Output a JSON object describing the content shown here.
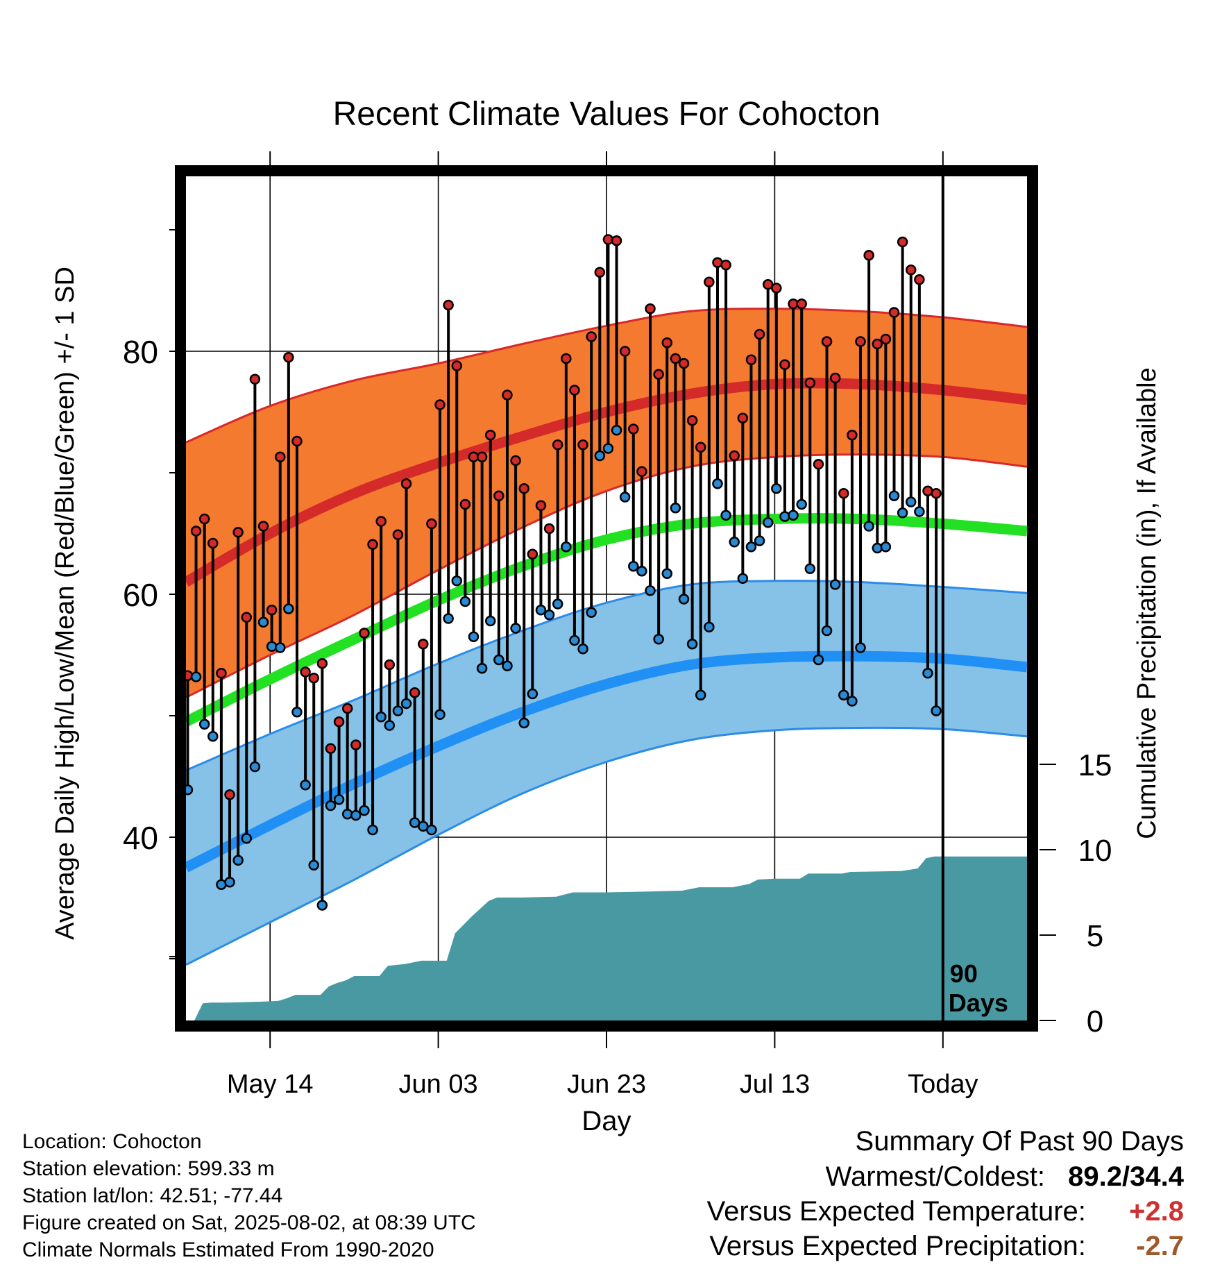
{
  "chart_data": {
    "type": "line",
    "title": "Recent Climate Values For Cohocton",
    "xlabel": "Day",
    "ylabel": "Average Daily High/Low/Mean (Red/Blue/Green) +/- 1 SD",
    "y2label": "Cumulative Precipitation (in), If Available",
    "x_range": [
      0,
      100
    ],
    "x_ticks": [
      {
        "day": 10,
        "label": "May 14"
      },
      {
        "day": 30,
        "label": "Jun 03"
      },
      {
        "day": 50,
        "label": "Jun 23"
      },
      {
        "day": 70,
        "label": "Jul 13"
      },
      {
        "day": 90,
        "label": "Today"
      }
    ],
    "ylim": [
      25,
      95
    ],
    "y_ticks": [
      40,
      60,
      80
    ],
    "y_minor_ticks": [
      30,
      50,
      70,
      90
    ],
    "y2lim": [
      0,
      15
    ],
    "y2_ticks": [
      0,
      5,
      10,
      15
    ],
    "grid": true,
    "today_marker": {
      "day": 90,
      "label_line1": "90",
      "label_line2": "Days"
    },
    "colors": {
      "high_band": "#f47a30",
      "high_band_edge": "#d9282a",
      "high_mean": "#d42a2a",
      "low_band": "#86c1e8",
      "low_band_edge": "#2a8ce8",
      "low_mean": "#2090f5",
      "mean_line": "#22e022",
      "precip": "#4899a2",
      "high_point": "#d42a2a",
      "low_point": "#2a8ad4"
    },
    "normal_high": [
      {
        "day": 0,
        "value": 61
      },
      {
        "day": 10,
        "value": 65
      },
      {
        "day": 20,
        "value": 68.3
      },
      {
        "day": 30,
        "value": 70.8
      },
      {
        "day": 40,
        "value": 73
      },
      {
        "day": 50,
        "value": 75
      },
      {
        "day": 60,
        "value": 76.5
      },
      {
        "day": 70,
        "value": 77.3
      },
      {
        "day": 80,
        "value": 77.3
      },
      {
        "day": 90,
        "value": 76.8
      },
      {
        "day": 100,
        "value": 76
      }
    ],
    "normal_high_upper": [
      {
        "day": 0,
        "value": 72.5
      },
      {
        "day": 10,
        "value": 75.5
      },
      {
        "day": 20,
        "value": 77.6
      },
      {
        "day": 30,
        "value": 79
      },
      {
        "day": 40,
        "value": 80.6
      },
      {
        "day": 50,
        "value": 82.1
      },
      {
        "day": 60,
        "value": 83.3
      },
      {
        "day": 70,
        "value": 83.5
      },
      {
        "day": 80,
        "value": 83.3
      },
      {
        "day": 90,
        "value": 82.8
      },
      {
        "day": 100,
        "value": 82
      }
    ],
    "normal_high_lower": [
      {
        "day": 0,
        "value": 51.5
      },
      {
        "day": 10,
        "value": 55
      },
      {
        "day": 20,
        "value": 58.3
      },
      {
        "day": 30,
        "value": 62
      },
      {
        "day": 40,
        "value": 65.5
      },
      {
        "day": 50,
        "value": 68.5
      },
      {
        "day": 60,
        "value": 70.5
      },
      {
        "day": 70,
        "value": 71.3
      },
      {
        "day": 80,
        "value": 71.5
      },
      {
        "day": 90,
        "value": 71.3
      },
      {
        "day": 100,
        "value": 70.5
      }
    ],
    "normal_mean": [
      {
        "day": 0,
        "value": 49.5
      },
      {
        "day": 10,
        "value": 53
      },
      {
        "day": 20,
        "value": 56.3
      },
      {
        "day": 30,
        "value": 59.5
      },
      {
        "day": 40,
        "value": 62.3
      },
      {
        "day": 50,
        "value": 64.5
      },
      {
        "day": 60,
        "value": 65.8
      },
      {
        "day": 70,
        "value": 66.2
      },
      {
        "day": 80,
        "value": 66.2
      },
      {
        "day": 90,
        "value": 65.8
      },
      {
        "day": 100,
        "value": 65.2
      }
    ],
    "normal_low": [
      {
        "day": 0,
        "value": 37.5
      },
      {
        "day": 10,
        "value": 41
      },
      {
        "day": 20,
        "value": 44.4
      },
      {
        "day": 30,
        "value": 47.5
      },
      {
        "day": 40,
        "value": 50.3
      },
      {
        "day": 50,
        "value": 52.6
      },
      {
        "day": 60,
        "value": 54.2
      },
      {
        "day": 70,
        "value": 54.8
      },
      {
        "day": 80,
        "value": 54.9
      },
      {
        "day": 90,
        "value": 54.7
      },
      {
        "day": 100,
        "value": 54
      }
    ],
    "normal_low_upper": [
      {
        "day": 0,
        "value": 45.5
      },
      {
        "day": 10,
        "value": 48.5
      },
      {
        "day": 20,
        "value": 51.3
      },
      {
        "day": 30,
        "value": 54.3
      },
      {
        "day": 40,
        "value": 57
      },
      {
        "day": 50,
        "value": 59.3
      },
      {
        "day": 60,
        "value": 60.8
      },
      {
        "day": 70,
        "value": 61.1
      },
      {
        "day": 80,
        "value": 61
      },
      {
        "day": 90,
        "value": 60.6
      },
      {
        "day": 100,
        "value": 60.1
      }
    ],
    "normal_low_lower": [
      {
        "day": 0,
        "value": 29.5
      },
      {
        "day": 10,
        "value": 33
      },
      {
        "day": 20,
        "value": 36.5
      },
      {
        "day": 30,
        "value": 40.2
      },
      {
        "day": 40,
        "value": 43.6
      },
      {
        "day": 50,
        "value": 46.2
      },
      {
        "day": 60,
        "value": 48
      },
      {
        "day": 70,
        "value": 48.8
      },
      {
        "day": 80,
        "value": 49
      },
      {
        "day": 90,
        "value": 48.9
      },
      {
        "day": 100,
        "value": 48.3
      }
    ],
    "daily": [
      {
        "day": 0,
        "high": 53.3,
        "low": 43.9
      },
      {
        "day": 1,
        "high": 65.2,
        "low": 53.2
      },
      {
        "day": 2,
        "high": 66.2,
        "low": 49.3
      },
      {
        "day": 3,
        "high": 64.2,
        "low": 48.3
      },
      {
        "day": 4,
        "high": 53.5,
        "low": 36.1
      },
      {
        "day": 5,
        "high": 43.5,
        "low": 36.3
      },
      {
        "day": 6,
        "high": 65.1,
        "low": 38.1
      },
      {
        "day": 7,
        "high": 58.1,
        "low": 39.9
      },
      {
        "day": 8,
        "high": 77.7,
        "low": 45.8
      },
      {
        "day": 9,
        "high": 65.6,
        "low": 57.7
      },
      {
        "day": 10,
        "high": 58.7,
        "low": 55.7
      },
      {
        "day": 11,
        "high": 71.3,
        "low": 55.6
      },
      {
        "day": 12,
        "high": 79.5,
        "low": 58.8
      },
      {
        "day": 13,
        "high": 72.6,
        "low": 50.3
      },
      {
        "day": 14,
        "high": 53.6,
        "low": 44.3
      },
      {
        "day": 15,
        "high": 53.1,
        "low": 37.7
      },
      {
        "day": 16,
        "high": 54.3,
        "low": 34.4
      },
      {
        "day": 17,
        "high": 47.3,
        "low": 42.6
      },
      {
        "day": 18,
        "high": 49.5,
        "low": 43.1
      },
      {
        "day": 19,
        "high": 50.6,
        "low": 41.9
      },
      {
        "day": 20,
        "high": 47.6,
        "low": 41.8
      },
      {
        "day": 21,
        "high": 56.8,
        "low": 42.2
      },
      {
        "day": 22,
        "high": 64.1,
        "low": 40.6
      },
      {
        "day": 23,
        "high": 66.0,
        "low": 49.9
      },
      {
        "day": 24,
        "high": 54.2,
        "low": 49.2
      },
      {
        "day": 25,
        "high": 64.9,
        "low": 50.4
      },
      {
        "day": 26,
        "high": 69.1,
        "low": 51.0
      },
      {
        "day": 27,
        "high": 51.9,
        "low": 41.2
      },
      {
        "day": 28,
        "high": 55.9,
        "low": 40.9
      },
      {
        "day": 29,
        "high": 65.8,
        "low": 40.6
      },
      {
        "day": 30,
        "high": 75.6,
        "low": 50.1
      },
      {
        "day": 31,
        "high": 83.8,
        "low": 58.0
      },
      {
        "day": 32,
        "high": 78.8,
        "low": 61.1
      },
      {
        "day": 33,
        "high": 67.4,
        "low": 59.4
      },
      {
        "day": 34,
        "high": 71.3,
        "low": 56.5
      },
      {
        "day": 35,
        "high": 71.3,
        "low": 53.9
      },
      {
        "day": 36,
        "high": 73.1,
        "low": 57.8
      },
      {
        "day": 37,
        "high": 68.1,
        "low": 54.6
      },
      {
        "day": 38,
        "high": 76.4,
        "low": 54.1
      },
      {
        "day": 39,
        "high": 71.0,
        "low": 57.2
      },
      {
        "day": 40,
        "high": 68.7,
        "low": 49.4
      },
      {
        "day": 41,
        "high": 63.3,
        "low": 51.8
      },
      {
        "day": 42,
        "high": 67.3,
        "low": 58.7
      },
      {
        "day": 43,
        "high": 65.4,
        "low": 58.3
      },
      {
        "day": 44,
        "high": 72.3,
        "low": 59.2
      },
      {
        "day": 45,
        "high": 79.4,
        "low": 63.9
      },
      {
        "day": 46,
        "high": 76.8,
        "low": 56.2
      },
      {
        "day": 47,
        "high": 72.3,
        "low": 55.5
      },
      {
        "day": 48,
        "high": 81.2,
        "low": 58.5
      },
      {
        "day": 49,
        "high": 86.5,
        "low": 71.4
      },
      {
        "day": 50,
        "high": 89.2,
        "low": 72.0
      },
      {
        "day": 51,
        "high": 89.1,
        "low": 73.5
      },
      {
        "day": 52,
        "high": 80.0,
        "low": 68.0
      },
      {
        "day": 53,
        "high": 73.6,
        "low": 62.3
      },
      {
        "day": 54,
        "high": 70.1,
        "low": 61.9
      },
      {
        "day": 55,
        "high": 83.5,
        "low": 60.3
      },
      {
        "day": 56,
        "high": 78.1,
        "low": 56.3
      },
      {
        "day": 57,
        "high": 80.7,
        "low": 61.7
      },
      {
        "day": 58,
        "high": 79.4,
        "low": 67.1
      },
      {
        "day": 59,
        "high": 79.0,
        "low": 59.6
      },
      {
        "day": 60,
        "high": 74.3,
        "low": 55.9
      },
      {
        "day": 61,
        "high": 72.1,
        "low": 51.7
      },
      {
        "day": 62,
        "high": 85.7,
        "low": 57.3
      },
      {
        "day": 63,
        "high": 87.3,
        "low": 69.1
      },
      {
        "day": 64,
        "high": 87.1,
        "low": 66.5
      },
      {
        "day": 65,
        "high": 71.4,
        "low": 64.3
      },
      {
        "day": 66,
        "high": 74.5,
        "low": 61.3
      },
      {
        "day": 67,
        "high": 79.3,
        "low": 63.9
      },
      {
        "day": 68,
        "high": 81.4,
        "low": 64.4
      },
      {
        "day": 69,
        "high": 85.5,
        "low": 65.9
      },
      {
        "day": 70,
        "high": 85.2,
        "low": 68.7
      },
      {
        "day": 71,
        "high": 78.9,
        "low": 66.4
      },
      {
        "day": 72,
        "high": 83.9,
        "low": 66.5
      },
      {
        "day": 73,
        "high": 83.9,
        "low": 67.4
      },
      {
        "day": 74,
        "high": 77.4,
        "low": 62.1
      },
      {
        "day": 75,
        "high": 70.7,
        "low": 54.6
      },
      {
        "day": 76,
        "high": 80.8,
        "low": 57.0
      },
      {
        "day": 77,
        "high": 77.8,
        "low": 60.8
      },
      {
        "day": 78,
        "high": 68.3,
        "low": 51.7
      },
      {
        "day": 79,
        "high": 73.1,
        "low": 51.2
      },
      {
        "day": 80,
        "high": 80.8,
        "low": 55.6
      },
      {
        "day": 81,
        "high": 87.9,
        "low": 65.6
      },
      {
        "day": 82,
        "high": 80.6,
        "low": 63.8
      },
      {
        "day": 83,
        "high": 81.0,
        "low": 63.9
      },
      {
        "day": 84,
        "high": 83.2,
        "low": 68.1
      },
      {
        "day": 85,
        "high": 89.0,
        "low": 66.7
      },
      {
        "day": 86,
        "high": 86.7,
        "low": 67.6
      },
      {
        "day": 87,
        "high": 85.9,
        "low": 66.8
      },
      {
        "day": 88,
        "high": 68.5,
        "low": 53.5
      },
      {
        "day": 89,
        "high": 68.3,
        "low": 50.4
      }
    ],
    "precipitation": [
      {
        "day": 0,
        "value": 0
      },
      {
        "day": 1,
        "value": 0
      },
      {
        "day": 2,
        "value": 1.0
      },
      {
        "day": 3,
        "value": 1.05
      },
      {
        "day": 5,
        "value": 1.05
      },
      {
        "day": 9,
        "value": 1.1
      },
      {
        "day": 11,
        "value": 1.15
      },
      {
        "day": 12,
        "value": 1.3
      },
      {
        "day": 13,
        "value": 1.5
      },
      {
        "day": 16,
        "value": 1.5
      },
      {
        "day": 17,
        "value": 2.0
      },
      {
        "day": 18,
        "value": 2.2
      },
      {
        "day": 19,
        "value": 2.35
      },
      {
        "day": 20,
        "value": 2.6
      },
      {
        "day": 23,
        "value": 2.6
      },
      {
        "day": 24,
        "value": 3.2
      },
      {
        "day": 26,
        "value": 3.3
      },
      {
        "day": 27,
        "value": 3.4
      },
      {
        "day": 28,
        "value": 3.5
      },
      {
        "day": 31,
        "value": 3.5
      },
      {
        "day": 32,
        "value": 5.1
      },
      {
        "day": 34,
        "value": 6.1
      },
      {
        "day": 36,
        "value": 7.0
      },
      {
        "day": 37,
        "value": 7.2
      },
      {
        "day": 40,
        "value": 7.2
      },
      {
        "day": 44,
        "value": 7.25
      },
      {
        "day": 46,
        "value": 7.5
      },
      {
        "day": 50,
        "value": 7.5
      },
      {
        "day": 55,
        "value": 7.55
      },
      {
        "day": 59,
        "value": 7.6
      },
      {
        "day": 61,
        "value": 7.8
      },
      {
        "day": 65,
        "value": 7.8
      },
      {
        "day": 67,
        "value": 8.0
      },
      {
        "day": 68,
        "value": 8.25
      },
      {
        "day": 70,
        "value": 8.3
      },
      {
        "day": 73,
        "value": 8.3
      },
      {
        "day": 74,
        "value": 8.6
      },
      {
        "day": 78,
        "value": 8.6
      },
      {
        "day": 79,
        "value": 8.7
      },
      {
        "day": 85,
        "value": 8.75
      },
      {
        "day": 87,
        "value": 8.9
      },
      {
        "day": 88,
        "value": 9.5
      },
      {
        "day": 89,
        "value": 9.6
      },
      {
        "day": 100,
        "value": 9.6
      }
    ]
  },
  "footer": {
    "location": "Location: Cohocton",
    "elevation": "Station elevation: 599.33 m",
    "latlon": "Station lat/lon: 42.51; -77.44",
    "created": "Figure created on Sat, 2025-08-02, at 08:39 UTC",
    "normals": "Climate Normals Estimated From 1990-2020"
  },
  "summary": {
    "title": "Summary Of Past 90 Days",
    "warmest_coldest_label": "Warmest/Coldest:",
    "warmest_coldest_value": "89.2/34.4",
    "temp_label": "Versus Expected Temperature:",
    "temp_value": "+2.8",
    "temp_color": "#d03030",
    "precip_label": "Versus Expected Precipitation:",
    "precip_value": "-2.7",
    "precip_color": "#a0582a"
  }
}
